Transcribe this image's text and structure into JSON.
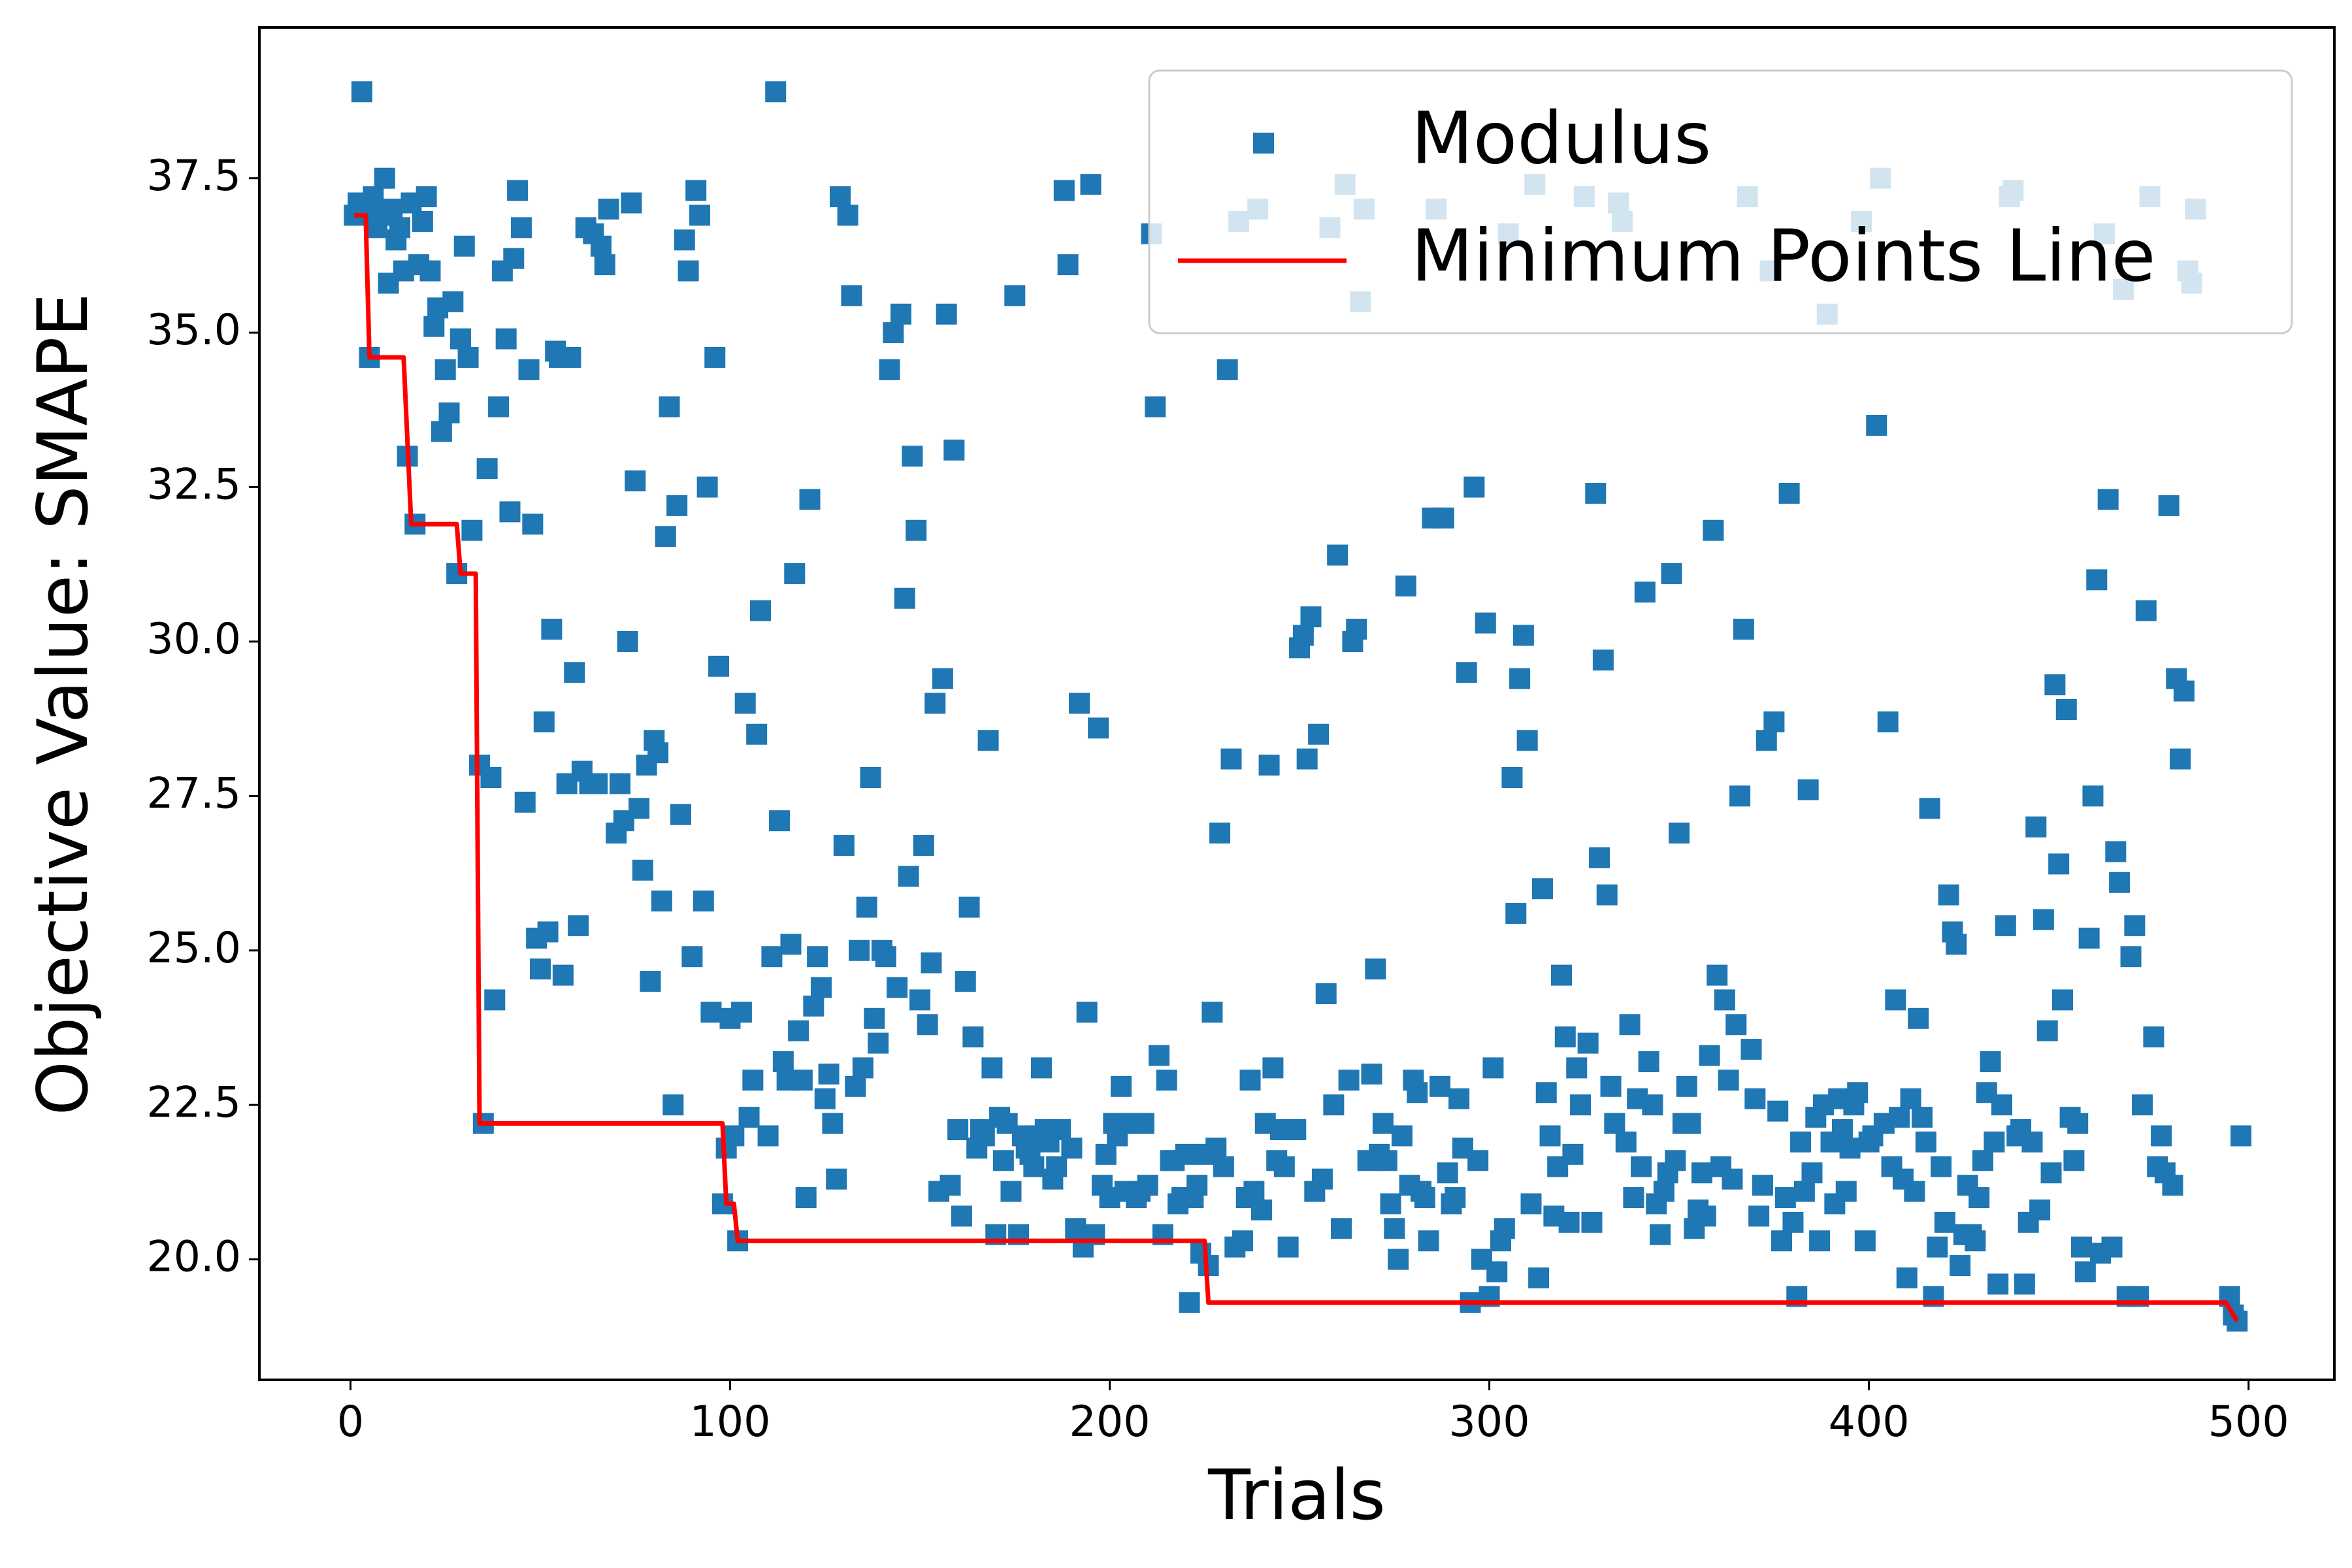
{
  "chart_data": {
    "type": "scatter",
    "x_label": "Trials",
    "y_label": "Objective Value: SMAPE",
    "xlim": [
      -24,
      522.6
    ],
    "ylim": [
      18.05,
      39.94
    ],
    "xticks": [
      0,
      100,
      200,
      300,
      400,
      500
    ],
    "yticks": [
      {
        "value": 20,
        "label": "20.0"
      },
      {
        "value": 22.5,
        "label": "22.5"
      },
      {
        "value": 25,
        "label": "25.0"
      },
      {
        "value": 27.5,
        "label": "27.5"
      },
      {
        "value": 30,
        "label": "30.0"
      },
      {
        "value": 32.5,
        "label": "32.5"
      },
      {
        "value": 35,
        "label": "35.0"
      },
      {
        "value": 37.5,
        "label": "37.5"
      }
    ],
    "legend": "upper right",
    "series": [
      {
        "name": "Modulus",
        "type": "scatter",
        "color": "#1f77b4",
        "x": [
          1,
          2,
          3,
          4,
          5,
          6,
          7,
          8,
          9,
          10,
          11,
          12,
          13,
          14,
          15,
          16,
          17,
          18,
          19,
          20,
          21,
          22,
          23,
          24,
          25,
          26,
          27,
          28,
          29,
          30,
          31,
          32,
          34,
          35,
          36,
          37,
          38,
          39,
          40,
          41,
          42,
          43,
          44,
          45,
          46,
          47,
          48,
          49,
          50,
          51,
          52,
          53,
          54,
          55,
          56,
          57,
          58,
          59,
          60,
          61,
          62,
          63,
          64,
          65,
          66,
          67,
          68,
          70,
          71,
          72,
          73,
          74,
          75,
          76,
          77,
          78,
          79,
          80,
          81,
          82,
          83,
          84,
          85,
          86,
          87,
          88,
          89,
          90,
          91,
          92,
          93,
          94,
          95,
          96,
          97,
          98,
          99,
          100,
          101,
          102,
          103,
          104,
          105,
          106,
          107,
          108,
          110,
          111,
          112,
          113,
          114,
          115,
          116,
          117,
          118,
          119,
          120,
          121,
          122,
          123,
          124,
          125,
          126,
          127,
          128,
          129,
          130,
          131,
          132,
          133,
          134,
          135,
          136,
          137,
          138,
          139,
          140,
          141,
          142,
          143,
          144,
          145,
          146,
          147,
          148,
          149,
          150,
          151,
          152,
          153,
          154,
          155,
          156,
          157,
          158,
          159,
          160,
          161,
          162,
          163,
          164,
          165,
          166,
          167,
          168,
          169,
          170,
          171,
          172,
          173,
          174,
          175,
          176,
          177,
          178,
          179,
          180,
          181,
          182,
          183,
          184,
          185,
          186,
          187,
          188,
          189,
          190,
          191,
          192,
          193,
          194,
          195,
          196,
          197,
          198,
          199,
          200,
          201,
          202,
          203,
          204,
          205,
          206,
          207,
          208,
          209,
          210,
          211,
          212,
          213,
          214,
          215,
          216,
          217,
          218,
          219,
          220,
          221,
          222,
          223,
          224,
          225,
          226,
          227,
          228,
          229,
          230,
          231,
          232,
          233,
          234,
          235,
          236,
          237,
          238,
          239,
          240,
          241,
          242,
          243,
          244,
          245,
          246,
          247,
          248,
          249,
          250,
          251,
          252,
          253,
          254,
          255,
          256,
          257,
          258,
          259,
          260,
          261,
          262,
          263,
          264,
          265,
          266,
          267,
          268,
          269,
          270,
          271,
          272,
          273,
          274,
          275,
          276,
          277,
          278,
          279,
          280,
          281,
          282,
          283,
          284,
          285,
          286,
          287,
          288,
          289,
          290,
          291,
          292,
          293,
          294,
          295,
          296,
          297,
          298,
          299,
          300,
          301,
          302,
          303,
          304,
          305,
          306,
          307,
          308,
          309,
          310,
          311,
          312,
          313,
          314,
          315,
          316,
          317,
          318,
          319,
          320,
          321,
          322,
          323,
          324,
          325,
          326,
          327,
          328,
          329,
          330,
          331,
          332,
          333,
          334,
          335,
          336,
          337,
          338,
          339,
          340,
          341,
          342,
          343,
          344,
          345,
          346,
          347,
          348,
          349,
          350,
          351,
          352,
          353,
          354,
          355,
          356,
          357,
          358,
          359,
          360,
          361,
          362,
          363,
          364,
          365,
          366,
          367,
          368,
          369,
          370,
          371,
          372,
          373,
          374,
          375,
          376,
          377,
          378,
          379,
          380,
          381,
          382,
          383,
          384,
          385,
          386,
          387,
          388,
          389,
          390,
          391,
          392,
          393,
          394,
          395,
          396,
          397,
          398,
          399,
          400,
          401,
          402,
          403,
          404,
          405,
          406,
          407,
          408,
          409,
          410,
          411,
          412,
          413,
          414,
          415,
          416,
          417,
          418,
          419,
          420,
          421,
          422,
          423,
          424,
          425,
          426,
          427,
          428,
          429,
          430,
          431,
          432,
          433,
          434,
          435,
          436,
          437,
          438,
          439,
          440,
          441,
          442,
          443,
          444,
          445,
          446,
          447,
          448,
          449,
          450,
          451,
          452,
          453,
          454,
          455,
          456,
          457,
          458,
          459,
          460,
          461,
          462,
          463,
          464,
          465,
          466,
          467,
          468,
          469,
          470,
          471,
          472,
          473,
          474,
          475,
          476,
          477,
          478,
          479,
          480,
          481,
          482,
          483,
          484,
          485,
          486,
          495,
          496,
          497,
          498
        ],
        "values": [
          36.9,
          37.1,
          38.9,
          37.0,
          34.6,
          37.2,
          36.7,
          36.9,
          37.5,
          35.8,
          37.0,
          36.5,
          36.7,
          36.0,
          33.0,
          37.1,
          31.9,
          36.1,
          36.8,
          37.2,
          36.0,
          35.1,
          35.4,
          33.4,
          34.4,
          33.7,
          35.5,
          31.1,
          34.9,
          36.4,
          34.6,
          31.8,
          28.0,
          22.2,
          32.8,
          27.8,
          24.2,
          33.8,
          36.0,
          34.9,
          32.1,
          36.2,
          37.3,
          36.7,
          27.4,
          34.4,
          31.9,
          25.2,
          24.7,
          28.7,
          25.3,
          30.2,
          34.7,
          34.6,
          24.6,
          27.7,
          34.6,
          29.5,
          25.4,
          27.9,
          36.7,
          27.7,
          36.6,
          27.7,
          36.4,
          36.1,
          37.0,
          26.9,
          27.7,
          27.1,
          30.0,
          37.1,
          32.6,
          27.3,
          26.3,
          28.0,
          24.5,
          28.4,
          28.2,
          25.8,
          31.7,
          33.8,
          22.5,
          32.2,
          27.2,
          36.5,
          36.0,
          24.9,
          37.3,
          36.9,
          25.8,
          32.5,
          24.0,
          34.6,
          29.6,
          20.9,
          21.8,
          23.9,
          22.0,
          20.3,
          24.0,
          29.0,
          22.3,
          22.9,
          28.5,
          30.5,
          22.0,
          24.9,
          38.9,
          27.1,
          23.2,
          22.9,
          25.1,
          31.1,
          23.7,
          22.9,
          21.0,
          32.3,
          24.1,
          24.9,
          24.4,
          22.6,
          23.0,
          22.2,
          21.3,
          37.2,
          26.7,
          36.9,
          35.6,
          22.8,
          25.0,
          23.1,
          25.7,
          27.8,
          23.9,
          23.5,
          25.0,
          24.9,
          34.4,
          35.0,
          24.4,
          35.3,
          30.7,
          26.2,
          33.0,
          31.8,
          24.2,
          26.7,
          23.8,
          24.8,
          29.0,
          21.1,
          29.4,
          35.3,
          21.2,
          33.1,
          22.1,
          20.7,
          24.5,
          25.7,
          23.6,
          21.8,
          22.1,
          22.0,
          28.4,
          23.1,
          20.4,
          22.3,
          21.6,
          22.2,
          21.1,
          35.6,
          20.4,
          22.0,
          21.8,
          21.7,
          21.5,
          22.0,
          23.1,
          22.1,
          21.9,
          21.3,
          21.5,
          22.1,
          37.3,
          36.1,
          21.8,
          20.5,
          29.0,
          20.2,
          24.0,
          37.4,
          20.4,
          28.6,
          21.2,
          21.7,
          21.0,
          22.2,
          22.0,
          22.8,
          21.1,
          22.2,
          22.2,
          21.0,
          21.1,
          22.2,
          21.2,
          36.6,
          33.8,
          23.3,
          20.4,
          22.9,
          21.6,
          21.6,
          20.9,
          21.0,
          21.7,
          19.3,
          21.0,
          21.2,
          20.1,
          21.7,
          19.9,
          24.0,
          21.8,
          26.9,
          21.5,
          34.4,
          28.1,
          20.2,
          36.8,
          20.3,
          21.0,
          22.9,
          21.1,
          37.0,
          20.8,
          22.2,
          28.0,
          23.1,
          21.6,
          22.1,
          21.5,
          20.2,
          22.1,
          22.1,
          29.9,
          30.1,
          28.1,
          30.4,
          21.1,
          28.5,
          21.3,
          24.3,
          36.7,
          22.5,
          31.4,
          20.5,
          37.4,
          22.9,
          30.0,
          30.2,
          35.5,
          37.0,
          21.6,
          23.0,
          24.7,
          21.7,
          22.2,
          21.6,
          20.9,
          20.5,
          20.0,
          22.0,
          30.9,
          21.2,
          22.9,
          22.7,
          21.1,
          21.0,
          20.3,
          32.0,
          37.0,
          22.8,
          32.0,
          21.4,
          20.9,
          21.0,
          22.6,
          21.8,
          29.5,
          19.3,
          32.5,
          21.6,
          20.0,
          30.3,
          19.4,
          23.1,
          19.8,
          20.3,
          20.5,
          36.6,
          27.8,
          25.6,
          29.4,
          30.1,
          28.4,
          20.9,
          37.4,
          19.7,
          26.0,
          22.7,
          22.0,
          20.7,
          21.5,
          24.6,
          23.6,
          20.6,
          21.7,
          23.1,
          22.5,
          37.2,
          23.5,
          20.6,
          32.4,
          26.5,
          29.7,
          25.9,
          22.8,
          22.2,
          37.1,
          36.8,
          21.9,
          23.8,
          21.0,
          22.6,
          21.5,
          30.8,
          23.2,
          22.5,
          20.9,
          20.4,
          21.1,
          21.4,
          31.1,
          21.6,
          26.9,
          22.2,
          22.8,
          22.2,
          20.5,
          20.8,
          21.4,
          20.7,
          23.3,
          31.8,
          24.6,
          21.5,
          24.2,
          22.9,
          21.3,
          23.8,
          27.5,
          30.2,
          37.2,
          23.4,
          22.6,
          20.7,
          21.2,
          28.4,
          36.0,
          28.7,
          22.4,
          20.3,
          21.0,
          32.4,
          20.6,
          19.4,
          21.9,
          21.1,
          27.6,
          21.4,
          22.3,
          20.3,
          22.5,
          35.3,
          21.9,
          20.9,
          22.6,
          22.1,
          21.1,
          21.8,
          22.5,
          22.7,
          36.8,
          20.3,
          21.9,
          22.0,
          33.5,
          37.5,
          22.2,
          28.7,
          21.5,
          24.2,
          22.3,
          21.3,
          19.7,
          22.6,
          21.1,
          23.9,
          22.3,
          21.9,
          27.3,
          19.4,
          20.2,
          21.5,
          20.6,
          25.9,
          25.3,
          25.1,
          19.9,
          20.4,
          21.2,
          20.4,
          20.3,
          21.0,
          21.6,
          22.7,
          23.2,
          21.9,
          19.6,
          22.5,
          25.4,
          37.2,
          37.3,
          22.0,
          22.1,
          19.6,
          20.6,
          21.9,
          27.0,
          20.8,
          25.5,
          23.7,
          21.4,
          29.3,
          26.4,
          24.2,
          28.9,
          22.3,
          21.6,
          22.2,
          20.2,
          19.8,
          25.2,
          27.5,
          31.0,
          20.1,
          36.6,
          32.3,
          20.2,
          26.6,
          26.1,
          35.7,
          19.4,
          24.9,
          25.4,
          19.4,
          22.5,
          30.5,
          37.2,
          23.6,
          21.5,
          22.0,
          21.4,
          32.2,
          21.2,
          29.4,
          28.1,
          29.2,
          36.0,
          35.8,
          37.0,
          19.4,
          19.1,
          19.0,
          22.0
        ]
      },
      {
        "name": "Minimum Points Line",
        "type": "line",
        "color": "#ff0000",
        "x": [
          1,
          4,
          5,
          14,
          16,
          28,
          29,
          33,
          34,
          98,
          99,
          101,
          102,
          225,
          226,
          494,
          497
        ],
        "values": [
          36.9,
          36.9,
          34.6,
          34.6,
          31.9,
          31.9,
          31.1,
          31.1,
          22.2,
          22.2,
          20.9,
          20.9,
          20.3,
          20.3,
          19.3,
          19.3,
          19.0
        ]
      }
    ]
  }
}
